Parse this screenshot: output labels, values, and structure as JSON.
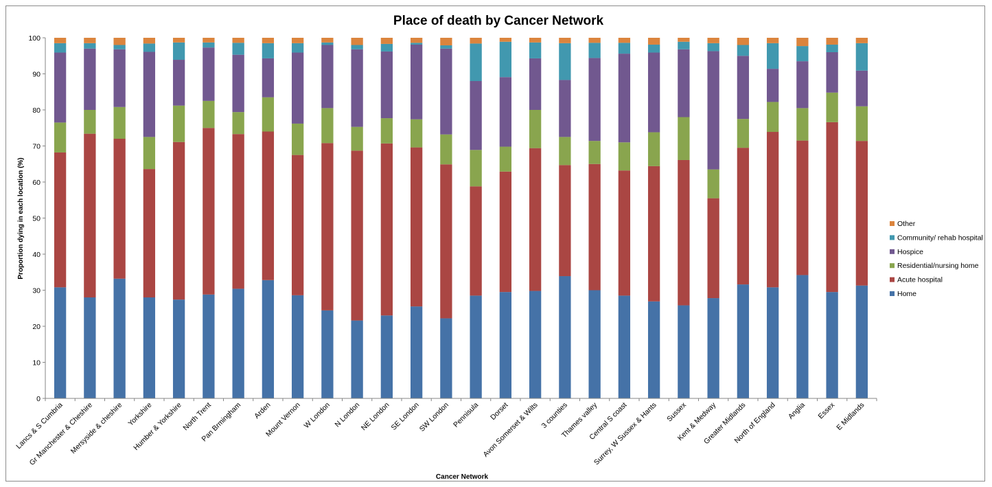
{
  "chart_data": {
    "type": "bar",
    "stacked": true,
    "title": "Place of death by Cancer Network",
    "xlabel": "Cancer Network",
    "ylabel": "Proportion dying in each location (%)",
    "ylim": [
      0,
      100
    ],
    "yticks": [
      0,
      10,
      20,
      30,
      40,
      50,
      60,
      70,
      80,
      90,
      100
    ],
    "grid": false,
    "legend_position": "right",
    "categories": [
      "Lancs & S Cumbria",
      "Gr Manchester & Cheshire",
      "Mersyside & cheshire",
      "Yorkshire",
      "Humber & Yorkshire",
      "North Trent",
      "Pan Brmingham",
      "Arden",
      "Mount Vernon",
      "W London",
      "N London",
      "NE London",
      "SE London",
      "SW London",
      "Pennisula",
      "Dorset",
      "Avon Somerset & Wilts",
      "3 counties",
      "Thames valley",
      "Central S coast",
      "Surrey, W Sussex & Hants",
      "Sussex",
      "Kent & Medway",
      "Greater Midlands",
      "North of England",
      "Anglia",
      "Essex",
      "E Midlands"
    ],
    "series": [
      {
        "name": "Home",
        "color": "#4572A7",
        "values": [
          30.8,
          28,
          33.2,
          28,
          27.4,
          28.8,
          30.4,
          32.8,
          28.6,
          24.4,
          21.6,
          23,
          25.5,
          22.2,
          28.5,
          29.5,
          29.8,
          33.9,
          30,
          28.5,
          26.9,
          25.8,
          27.8,
          31.6,
          30.8,
          34.2,
          29.5,
          31.3
        ]
      },
      {
        "name": "Acute hospital",
        "color": "#AA4643",
        "values": [
          37.4,
          45.4,
          38.8,
          35.6,
          43.7,
          46.2,
          42.9,
          41.2,
          38.9,
          46.4,
          47.1,
          47.7,
          44.1,
          42.7,
          30.3,
          33.4,
          39.6,
          30.8,
          35,
          34.7,
          37.5,
          40.3,
          27.7,
          37.9,
          43.1,
          37.3,
          47.1,
          40.1
        ]
      },
      {
        "name": "Residential/nursing home",
        "color": "#89A54E",
        "values": [
          8.3,
          6.6,
          8.8,
          8.9,
          10.1,
          7.5,
          6.1,
          9.5,
          8.7,
          9.7,
          6.6,
          7,
          7.8,
          8.3,
          10.1,
          6.9,
          10.6,
          7.8,
          6.4,
          7.8,
          9.4,
          11.9,
          8,
          8,
          8.3,
          9,
          8.2,
          9.6
        ]
      },
      {
        "name": "Hospice",
        "color": "#71588F",
        "values": [
          19.4,
          17,
          16,
          23.6,
          12.7,
          14.8,
          15.9,
          10.8,
          19.7,
          17.5,
          21.5,
          18.5,
          20.7,
          23.8,
          19.1,
          19.3,
          14.3,
          15.8,
          23,
          24.6,
          22.1,
          18.8,
          32.8,
          17.5,
          9.2,
          13,
          11.2,
          9.9
        ]
      },
      {
        "name": "Community/ rehab hospital",
        "color": "#4198AF",
        "values": [
          2.6,
          1.5,
          1.2,
          2.3,
          4.8,
          1.4,
          3.3,
          4.2,
          2.6,
          0.7,
          1.2,
          2.1,
          0.5,
          0.9,
          10.4,
          9.8,
          4.4,
          10.2,
          4.2,
          3,
          2.2,
          2.1,
          2.2,
          3,
          7.1,
          4.2,
          2.1,
          7.6
        ]
      },
      {
        "name": "Other",
        "color": "#DB843D",
        "values": [
          1.5,
          1.5,
          2,
          1.6,
          1.3,
          1.3,
          1.4,
          1.5,
          1.5,
          1.3,
          2,
          1.7,
          1.4,
          2.1,
          1.6,
          1.1,
          1.3,
          1.5,
          1.4,
          1.4,
          1.9,
          1.1,
          1.5,
          2,
          1.5,
          2.3,
          1.9,
          1.5
        ]
      }
    ]
  }
}
